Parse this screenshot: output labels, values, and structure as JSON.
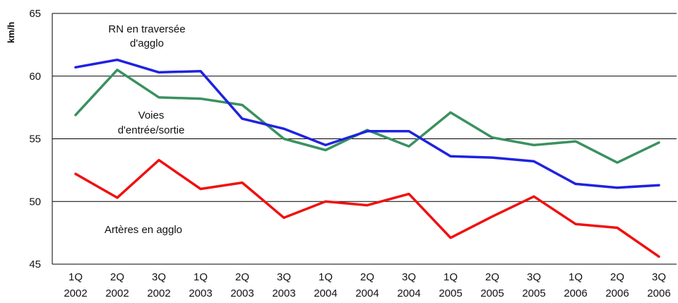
{
  "chart_data": {
    "type": "line",
    "ylabel": "km/h",
    "ylim": [
      45,
      65
    ],
    "yticks": [
      45,
      50,
      55,
      60,
      65
    ],
    "grid": true,
    "categories": [
      [
        "1Q",
        "2002"
      ],
      [
        "2Q",
        "2002"
      ],
      [
        "3Q",
        "2002"
      ],
      [
        "1Q",
        "2003"
      ],
      [
        "2Q",
        "2003"
      ],
      [
        "3Q",
        "2003"
      ],
      [
        "1Q",
        "2004"
      ],
      [
        "2Q",
        "2004"
      ],
      [
        "3Q",
        "2004"
      ],
      [
        "1Q",
        "2005"
      ],
      [
        "2Q",
        "2005"
      ],
      [
        "3Q",
        "2005"
      ],
      [
        "1Q",
        "2006"
      ],
      [
        "2Q",
        "2006"
      ],
      [
        "3Q",
        "2006"
      ]
    ],
    "series": [
      {
        "name": "RN en traversée d'agglo",
        "label_lines": [
          "RN en traversée",
          "d'agglo"
        ],
        "color": "#1f22e0",
        "values": [
          60.7,
          61.3,
          60.3,
          60.4,
          56.6,
          55.8,
          54.5,
          55.6,
          55.6,
          53.6,
          53.5,
          53.2,
          51.4,
          51.1,
          51.3
        ]
      },
      {
        "name": "Voies d'entrée/sortie",
        "label_lines": [
          "Voies",
          "d'entrée/sortie"
        ],
        "color": "#3a9160",
        "values": [
          56.9,
          60.5,
          58.3,
          58.2,
          57.7,
          55.0,
          54.1,
          55.7,
          54.4,
          57.1,
          55.1,
          54.5,
          54.8,
          53.1,
          54.7
        ]
      },
      {
        "name": "Artères en agglo",
        "label_lines": [
          "Artères en agglo"
        ],
        "color": "#f01010",
        "values": [
          52.2,
          50.3,
          53.3,
          51.0,
          51.5,
          48.7,
          50.0,
          49.7,
          50.6,
          47.1,
          48.8,
          50.4,
          48.2,
          47.9,
          45.6
        ]
      }
    ]
  }
}
